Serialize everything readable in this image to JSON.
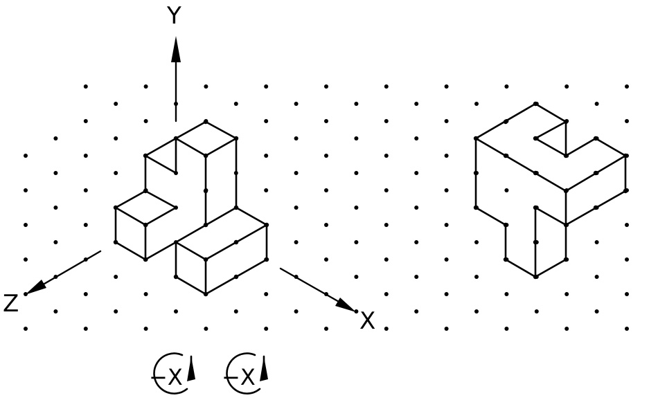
{
  "axes": {
    "y_label": "Y",
    "z_label": "Z",
    "x_label": "X"
  },
  "rotations": [
    {
      "label": "−X",
      "icon": "rotate-arrow-icon"
    },
    {
      "label": "−X",
      "icon": "rotate-arrow-icon"
    }
  ],
  "colors": {
    "line": "#000000",
    "background": "#ffffff"
  }
}
